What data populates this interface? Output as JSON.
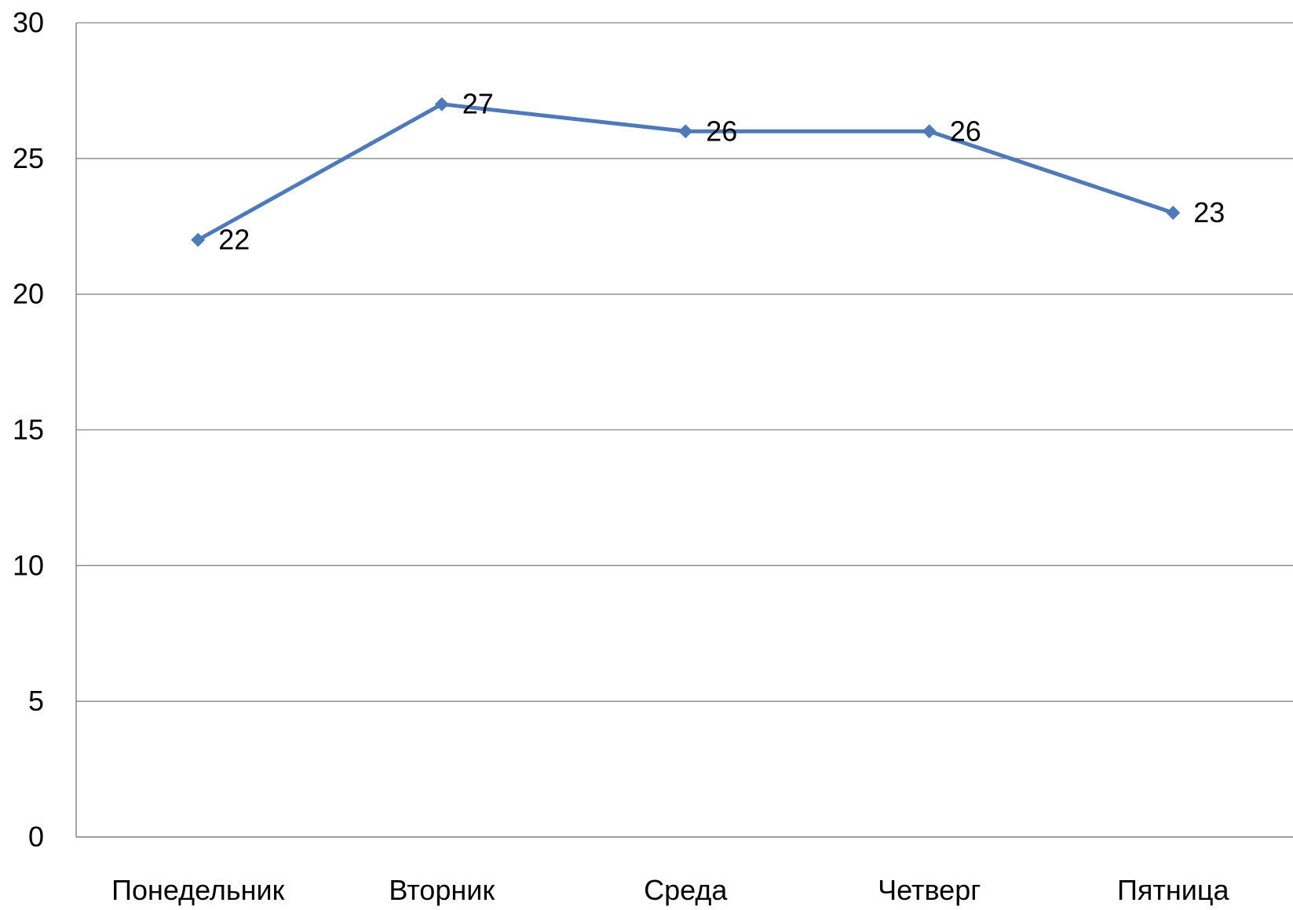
{
  "chart_data": {
    "type": "line",
    "title": "",
    "xlabel": "",
    "ylabel": "",
    "categories": [
      "Понедельник",
      "Вторник",
      "Среда",
      "Четверг",
      "Пятница"
    ],
    "series": [
      {
        "values": [
          22,
          27,
          26,
          26,
          23
        ],
        "color": "#4f7ab8",
        "marker": "diamond",
        "data_labels": [
          "22",
          "27",
          "26",
          "26",
          "23"
        ]
      }
    ],
    "ylim": [
      0,
      30
    ],
    "yticks": [
      0,
      5,
      10,
      15,
      20,
      25,
      30
    ],
    "ytick_labels": [
      "0",
      "5",
      "10",
      "15",
      "20",
      "25",
      "30"
    ],
    "grid": true,
    "grid_color": "#868686",
    "legend": "none"
  }
}
